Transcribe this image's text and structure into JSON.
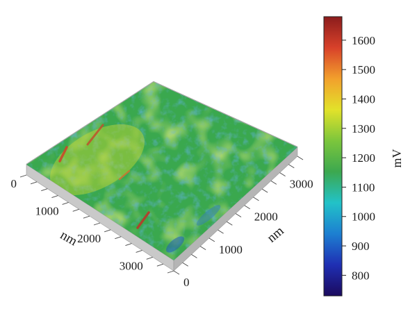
{
  "chart_data": {
    "type": "heatmap",
    "title": "",
    "subtitle": "",
    "description_kind": "3D AFM surface potential map",
    "x_axis": {
      "label": "nm",
      "ticks": [
        0,
        1000,
        2000,
        3000
      ],
      "range": [
        0,
        3500
      ]
    },
    "y_axis": {
      "label": "nm",
      "ticks": [
        0,
        1000,
        2000,
        3000
      ],
      "range": [
        0,
        3500
      ]
    },
    "colorbar": {
      "label": "mV",
      "ticks": [
        800,
        900,
        1000,
        1100,
        1200,
        1300,
        1400,
        1500,
        1600
      ],
      "range": [
        730,
        1680
      ],
      "colormap": "jet",
      "colors": [
        "#1b0a5e",
        "#1f2fb3",
        "#1d7fd1",
        "#22c2c8",
        "#3ca84f",
        "#7cc63c",
        "#e2e22a",
        "#f2a02c",
        "#d8412a",
        "#8b1c1c"
      ]
    },
    "surface": {
      "dominant_value_mV": 1150,
      "min_visible_mV": 850,
      "max_visible_mV": 1650,
      "grid": false,
      "legend": "colorbar-right"
    }
  }
}
